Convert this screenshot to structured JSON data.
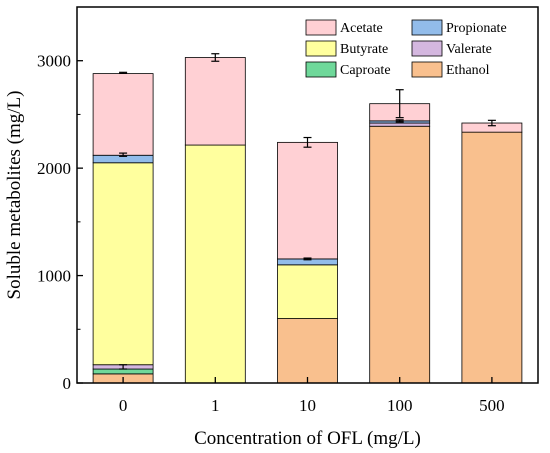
{
  "chart_data": {
    "type": "bar",
    "stacked": true,
    "xlabel": "Concentration of OFL (mg/L)",
    "ylabel": "Soluble metabolites (mg/L)",
    "ylim": [
      0,
      3500
    ],
    "yticks": [
      0,
      1000,
      2000,
      3000
    ],
    "categories": [
      "0",
      "1",
      "10",
      "100",
      "500"
    ],
    "series": [
      {
        "name": "Ethanol",
        "color": "#F9C08E",
        "values": [
          85,
          0,
          600,
          2390,
          2335
        ]
      },
      {
        "name": "Caproate",
        "color": "#6FD89A",
        "values": [
          45,
          0,
          0,
          0,
          0
        ]
      },
      {
        "name": "Valerate",
        "color": "#D4B7DF",
        "values": [
          40,
          0,
          0,
          30,
          0
        ]
      },
      {
        "name": "Butyrate",
        "color": "#FFFF9E",
        "values": [
          1880,
          2215,
          500,
          0,
          0
        ]
      },
      {
        "name": "Propionate",
        "color": "#92BCEA",
        "values": [
          70,
          0,
          55,
          20,
          0
        ]
      },
      {
        "name": "Acetate",
        "color": "#FFD0D4",
        "values": [
          760,
          815,
          1085,
          160,
          85
        ]
      }
    ],
    "error_bars": [
      {
        "category": "0",
        "y": 2887,
        "err": 5
      },
      {
        "category": "0",
        "y": 2125,
        "err": 15
      },
      {
        "category": "0",
        "y": 150,
        "err": 20
      },
      {
        "category": "1",
        "y": 3030,
        "err": 35
      },
      {
        "category": "10",
        "y": 2240,
        "err": 45
      },
      {
        "category": "10",
        "y": 1155,
        "err": 8
      },
      {
        "category": "100",
        "y": 2600,
        "err": 130
      },
      {
        "category": "100",
        "y": 2440,
        "err": 10
      },
      {
        "category": "500",
        "y": 2420,
        "err": 25
      }
    ],
    "legend": {
      "placement": "top-right",
      "columns": [
        [
          "Acetate",
          "Butyrate",
          "Caproate"
        ],
        [
          "Propionate",
          "Valerate",
          "Ethanol"
        ]
      ]
    }
  }
}
